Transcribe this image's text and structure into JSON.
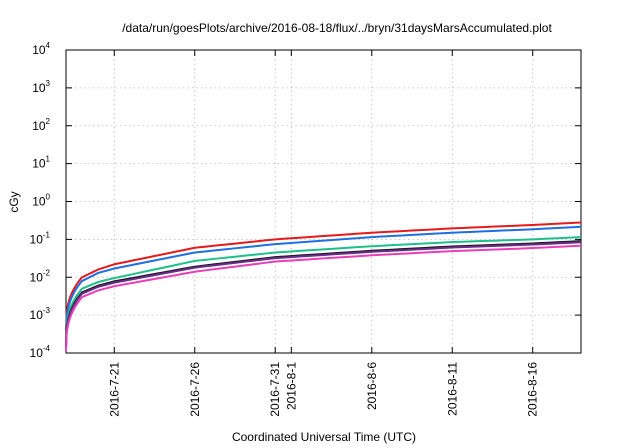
{
  "chart_data": {
    "type": "line",
    "title": "/data/run/goesPlots/archive/2016-08-18/flux/../bryn/31daysMarsAccumulated.plot",
    "xlabel": "Coordinated Universal Time (UTC)",
    "ylabel": "cGy",
    "y_scale": "log",
    "ylim": [
      0.0001,
      10000
    ],
    "xlim": [
      "2016-07-18",
      "2016-08-19"
    ],
    "y_ticks": [
      {
        "base": "10",
        "exp": "-4",
        "value": 0.0001
      },
      {
        "base": "10",
        "exp": "-3",
        "value": 0.001
      },
      {
        "base": "10",
        "exp": "-2",
        "value": 0.01
      },
      {
        "base": "10",
        "exp": "-1",
        "value": 0.1
      },
      {
        "base": "10",
        "exp": "0",
        "value": 1
      },
      {
        "base": "10",
        "exp": "1",
        "value": 10
      },
      {
        "base": "10",
        "exp": "2",
        "value": 100
      },
      {
        "base": "10",
        "exp": "3",
        "value": 1000
      },
      {
        "base": "10",
        "exp": "4",
        "value": 10000
      }
    ],
    "x_ticks": [
      {
        "label": "2016-7-21",
        "date": "2016-07-21"
      },
      {
        "label": "2016-7-26",
        "date": "2016-07-26"
      },
      {
        "label": "2016-7-31",
        "date": "2016-07-31"
      },
      {
        "label": "2016-8-1",
        "date": "2016-08-01"
      },
      {
        "label": "2016-8-6",
        "date": "2016-08-06"
      },
      {
        "label": "2016-8-11",
        "date": "2016-08-11"
      },
      {
        "label": "2016-8-16",
        "date": "2016-08-16"
      }
    ],
    "grid": true,
    "legend": "none",
    "series": [
      {
        "color": "#e41a1c",
        "x": [
          "2016-07-18",
          "2016-07-19",
          "2016-07-20",
          "2016-07-21",
          "2016-07-26",
          "2016-07-31",
          "2016-08-06",
          "2016-08-11",
          "2016-08-16",
          "2016-08-19"
        ],
        "values": [
          0.0004,
          0.01,
          0.016,
          0.022,
          0.06,
          0.1,
          0.15,
          0.195,
          0.24,
          0.28
        ]
      },
      {
        "color": "#1f6fe0",
        "x": [
          "2016-07-18",
          "2016-07-19",
          "2016-07-20",
          "2016-07-21",
          "2016-07-26",
          "2016-07-31",
          "2016-08-06",
          "2016-08-11",
          "2016-08-16",
          "2016-08-19"
        ],
        "values": [
          0.0003,
          0.008,
          0.013,
          0.017,
          0.045,
          0.075,
          0.115,
          0.15,
          0.185,
          0.215
        ]
      },
      {
        "color": "#1dbf8a",
        "x": [
          "2016-07-18",
          "2016-07-19",
          "2016-07-20",
          "2016-07-21",
          "2016-07-26",
          "2016-07-31",
          "2016-08-06",
          "2016-08-11",
          "2016-08-16",
          "2016-08-19"
        ],
        "values": [
          0.0002,
          0.005,
          0.0075,
          0.0095,
          0.027,
          0.045,
          0.066,
          0.085,
          0.1,
          0.115
        ]
      },
      {
        "color": "#1a1a1a",
        "x": [
          "2016-07-18",
          "2016-07-19",
          "2016-07-20",
          "2016-07-21",
          "2016-07-26",
          "2016-07-31",
          "2016-08-06",
          "2016-08-11",
          "2016-08-16",
          "2016-08-19"
        ],
        "values": [
          0.00015,
          0.004,
          0.006,
          0.0078,
          0.019,
          0.034,
          0.05,
          0.065,
          0.078,
          0.09
        ]
      },
      {
        "color": "#6b2a8c",
        "x": [
          "2016-07-18",
          "2016-07-19",
          "2016-07-20",
          "2016-07-21",
          "2016-07-26",
          "2016-07-31",
          "2016-08-06",
          "2016-08-11",
          "2016-08-16",
          "2016-08-19"
        ],
        "values": [
          0.00014,
          0.0037,
          0.0056,
          0.0072,
          0.018,
          0.032,
          0.047,
          0.061,
          0.073,
          0.084
        ]
      },
      {
        "color": "#e83fb8",
        "x": [
          "2016-07-18",
          "2016-07-19",
          "2016-07-20",
          "2016-07-21",
          "2016-07-26",
          "2016-07-31",
          "2016-08-06",
          "2016-08-11",
          "2016-08-16",
          "2016-08-19"
        ],
        "values": [
          0.00011,
          0.003,
          0.0045,
          0.0058,
          0.014,
          0.026,
          0.038,
          0.049,
          0.059,
          0.068
        ]
      }
    ]
  }
}
